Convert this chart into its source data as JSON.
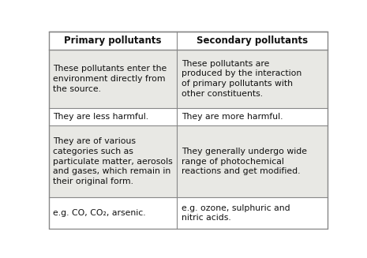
{
  "headers": [
    "Primary pollutants",
    "Secondary pollutants"
  ],
  "rows": [
    [
      "These pollutants enter the\nenvironment directly from\nthe source.",
      "These pollutants are\nproduced by the interaction\nof primary pollutants with\nother constituents."
    ],
    [
      "They are less harmful.",
      "They are more harmful."
    ],
    [
      "They are of various\ncategories such as\nparticulate matter, aerosols\nand gases, which remain in\ntheir original form.",
      "They generally undergo wide\nrange of photochemical\nreactions and get modified."
    ],
    [
      "e.g. CO, CO₂, arsenic.",
      "e.g. ozone, sulphuric and\nnitric acids."
    ]
  ],
  "col_split": 0.46,
  "bg_color": "#ffffff",
  "line_color": "#888888",
  "text_color": "#111111",
  "header_fontsize": 8.5,
  "body_fontsize": 7.8,
  "fig_width": 4.65,
  "fig_height": 3.27,
  "row_line_counts": [
    4,
    1,
    5,
    2
  ],
  "header_lines": 1,
  "shaded_rows": [
    0,
    2
  ],
  "shade_color": "#e8e8e4"
}
